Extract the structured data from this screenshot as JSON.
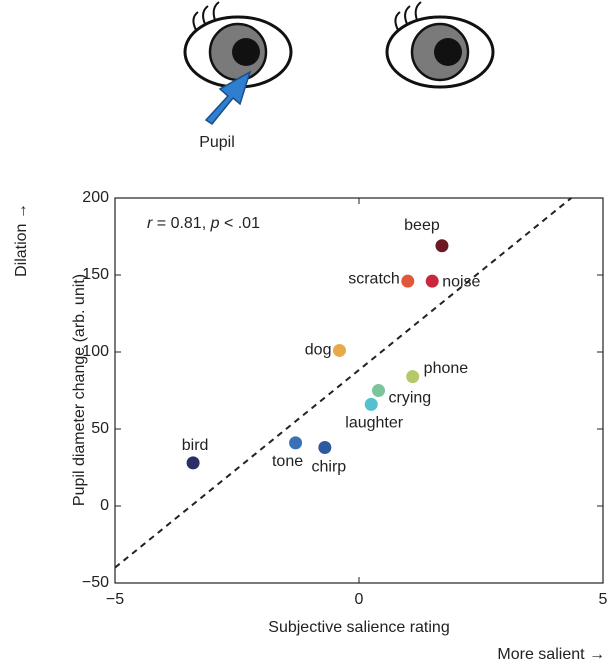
{
  "illustration": {
    "label": "Pupil"
  },
  "chart_data": {
    "type": "scatter",
    "annotation_parts": [
      "r",
      " = 0.81, ",
      "p",
      " < .01"
    ],
    "x_label": "Subjective salience rating",
    "y_label": "Pupil diameter change (arb. unit)",
    "y_direction_label": "Dilation →",
    "x_direction_label": "More salient →",
    "labels": [
      "beep",
      "scratch",
      "noise",
      "dog",
      "phone",
      "crying",
      "laughter",
      "chirp",
      "tone",
      "bird"
    ],
    "x": [
      1.7,
      1.0,
      1.5,
      -0.4,
      1.1,
      0.4,
      0.25,
      -0.7,
      -1.3,
      -3.4
    ],
    "y": [
      169,
      146,
      146,
      101,
      84,
      75,
      66,
      38,
      41,
      28
    ],
    "colors": [
      "#6b1a24",
      "#e0573a",
      "#c8283c",
      "#e8a94a",
      "#b3c96a",
      "#7cc49b",
      "#55c0d0",
      "#2c5aa0",
      "#3a70b8",
      "#2a2f66"
    ],
    "fit_line": {
      "x": [
        -5,
        4.35
      ],
      "y": [
        -40,
        200
      ]
    },
    "xlim": [
      -5,
      5
    ],
    "ylim": [
      -50,
      200
    ],
    "xticks": [
      {
        "value": -5,
        "label": "−5"
      },
      0,
      5
    ],
    "yticks": [
      {
        "value": -50,
        "label": "−50"
      },
      0,
      50,
      100,
      150,
      200
    ]
  }
}
